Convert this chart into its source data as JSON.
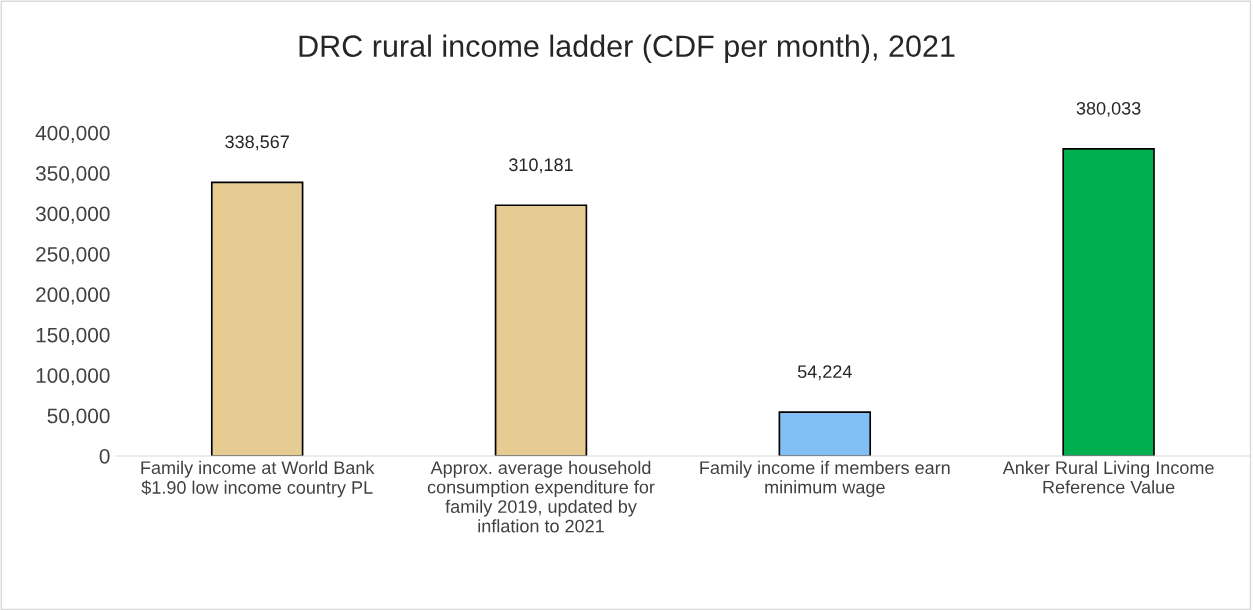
{
  "chart_data": {
    "type": "bar",
    "title": "DRC rural income ladder (CDF per month), 2021",
    "categories": [
      "Family income at World Bank $1.90 low income country PL",
      "Approx. average household consumption expenditure for family 2019, updated by inflation to 2021",
      "Family income if members earn minimum wage",
      "Anker Rural Living Income Reference Value"
    ],
    "values": [
      338567,
      310181,
      54224,
      380033
    ],
    "colors": [
      "#e6cc92",
      "#e6cc92",
      "#82bff5",
      "#00b050"
    ],
    "value_labels": [
      "338,567",
      "310,181",
      "54,224",
      "380,033"
    ],
    "ylim": [
      0,
      400000
    ],
    "yticks": [
      {
        "value": 0,
        "label": "0"
      },
      {
        "value": 50000,
        "label": "50,000"
      },
      {
        "value": 100000,
        "label": "100,000"
      },
      {
        "value": 150000,
        "label": "150,000"
      },
      {
        "value": 200000,
        "label": "200,000"
      },
      {
        "value": 250000,
        "label": "250,000"
      },
      {
        "value": 300000,
        "label": "300,000"
      },
      {
        "value": 350000,
        "label": "350,000"
      },
      {
        "value": 400000,
        "label": "400,000"
      }
    ],
    "grid": false,
    "legend": false
  }
}
